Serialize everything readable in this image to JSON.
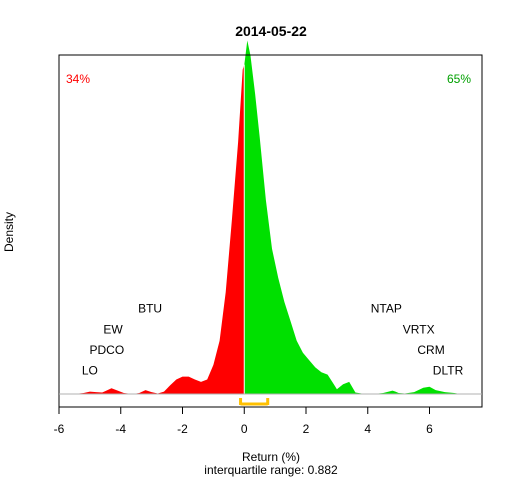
{
  "chart_data": {
    "type": "area",
    "title": "2014-05-22",
    "xlabel": "Return (%)",
    "ylabel": "Density",
    "subtitle": "interquartile range: 0.882",
    "xlim": [
      -6,
      7.7
    ],
    "ylim": [
      0,
      0.7
    ],
    "x_ticks": [
      "-6",
      "-4",
      "-2",
      "0",
      "2",
      "4",
      "6"
    ],
    "x_tick_values": [
      -6,
      -4,
      -2,
      0,
      2,
      4,
      6
    ],
    "pct_negative": "34%",
    "pct_positive": "65%",
    "colors": {
      "negative": "#ff0000",
      "positive": "#00e000",
      "iqr": "#ffc000",
      "pct_negative": "#ff0000",
      "pct_positive": "#00a000"
    },
    "iqr": [
      -0.12,
      0.76
    ],
    "density": {
      "x": [
        -6.0,
        -5.5,
        -5.2,
        -5.0,
        -4.8,
        -4.6,
        -4.5,
        -4.3,
        -4.1,
        -3.9,
        -3.6,
        -3.4,
        -3.2,
        -3.0,
        -2.8,
        -2.6,
        -2.4,
        -2.2,
        -2.0,
        -1.8,
        -1.6,
        -1.4,
        -1.2,
        -1.0,
        -0.8,
        -0.6,
        -0.4,
        -0.2,
        -0.05,
        0.0,
        0.1,
        0.2,
        0.35,
        0.5,
        0.7,
        0.9,
        1.1,
        1.3,
        1.5,
        1.7,
        1.9,
        2.1,
        2.3,
        2.5,
        2.7,
        2.9,
        3.0,
        3.2,
        3.4,
        3.6,
        3.9,
        4.2,
        4.5,
        4.8,
        4.9,
        5.0,
        5.2,
        5.5,
        5.8,
        6.0,
        6.2,
        6.5,
        6.8,
        7.0,
        7.7
      ],
      "y": [
        0.0,
        0.0,
        0.002,
        0.005,
        0.004,
        0.003,
        0.006,
        0.012,
        0.007,
        0.002,
        0.0,
        0.002,
        0.008,
        0.004,
        0.001,
        0.005,
        0.018,
        0.03,
        0.036,
        0.036,
        0.03,
        0.025,
        0.03,
        0.06,
        0.11,
        0.21,
        0.36,
        0.52,
        0.67,
        0.68,
        0.73,
        0.7,
        0.62,
        0.53,
        0.4,
        0.3,
        0.24,
        0.19,
        0.15,
        0.11,
        0.085,
        0.07,
        0.055,
        0.045,
        0.04,
        0.02,
        0.01,
        0.02,
        0.025,
        0.003,
        0.0,
        0.0,
        0.002,
        0.007,
        0.005,
        0.002,
        0.001,
        0.004,
        0.013,
        0.015,
        0.008,
        0.004,
        0.002,
        0.0,
        0.0
      ]
    },
    "annotations": [
      {
        "label": "LO",
        "x": -5.0,
        "y": 0.04
      },
      {
        "label": "PDCO",
        "x": -4.45,
        "y": 0.083
      },
      {
        "label": "EW",
        "x": -4.25,
        "y": 0.125
      },
      {
        "label": "BTU",
        "x": -3.05,
        "y": 0.168
      },
      {
        "label": "NTAP",
        "x": 4.6,
        "y": 0.168
      },
      {
        "label": "VRTX",
        "x": 5.65,
        "y": 0.125
      },
      {
        "label": "CRM",
        "x": 6.05,
        "y": 0.083
      },
      {
        "label": "DLTR",
        "x": 6.6,
        "y": 0.04
      }
    ]
  }
}
